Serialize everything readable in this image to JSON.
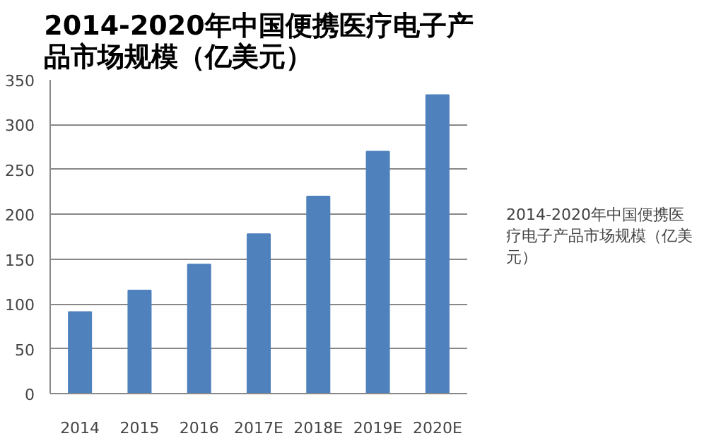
{
  "chart_data": {
    "type": "bar",
    "title": "2014-2020年中国便携医疗电子产品市场规模（亿美元）",
    "categories": [
      "2014",
      "2015",
      "2016",
      "2017E",
      "2018E",
      "2019E",
      "2020E"
    ],
    "series": [
      {
        "name": "2014-2020年中国便携医疗电子产品市场规模（亿美元）",
        "color": "#4f81bd",
        "values": [
          91,
          115,
          144,
          178,
          220,
          270,
          333
        ]
      }
    ],
    "ylim": [
      0,
      350
    ],
    "yticks": [
      0,
      50,
      100,
      150,
      200,
      250,
      300,
      350
    ],
    "grid": "y",
    "legend": "right"
  }
}
